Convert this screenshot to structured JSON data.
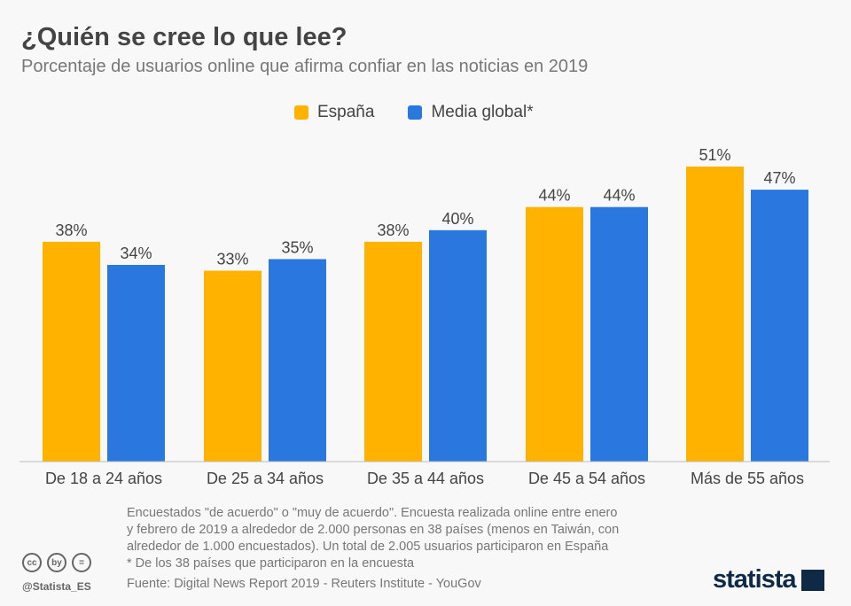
{
  "chart_data": {
    "type": "bar",
    "title": "¿Quién se cree lo que lee?",
    "subtitle": "Porcentaje de usuarios online que afirma confiar en las noticias en 2019",
    "categories": [
      "De 18 a 24 años",
      "De 25 a 34 años",
      "De 35 a 44 años",
      "De 45 a 54 años",
      "Más de 55 años"
    ],
    "series": [
      {
        "name": "España",
        "color": "#FFB300",
        "values": [
          38,
          33,
          38,
          44,
          51
        ]
      },
      {
        "name": "Media global*",
        "color": "#2A77DF",
        "values": [
          34,
          35,
          40,
          44,
          47
        ]
      }
    ],
    "value_suffix": "%",
    "ylim": [
      0,
      51
    ],
    "grid": false,
    "legend": "top"
  },
  "footer": {
    "notes": [
      "Encuestados \"de acuerdo\" o \"muy de acuerdo\". Encuesta realizada online entre enero",
      "y febrero de 2019 a alrededor de 2.000 personas en 38 países (menos en Taiwán, con",
      "alrededor de 1.000 encuestados). Un total de 2.005 usuarios participaron en España",
      "* De los 38 países que participaron en la encuesta"
    ],
    "source": "Fuente: Digital News Report 2019 - Reuters Institute - YouGov",
    "handle": "@Statista_ES",
    "logo": "statista",
    "license_icons": [
      "cc",
      "by",
      "="
    ]
  }
}
